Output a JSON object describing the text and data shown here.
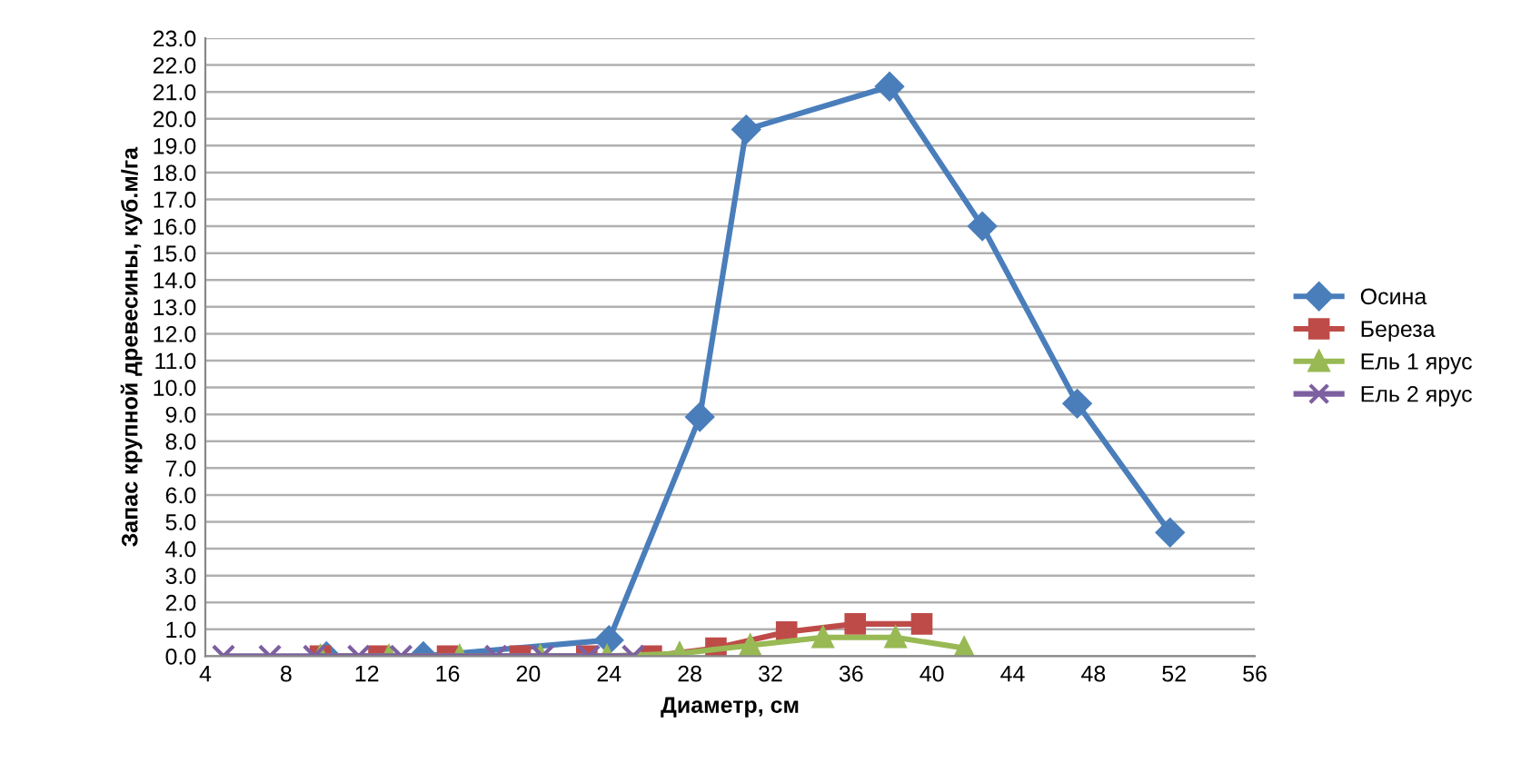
{
  "chart_data": {
    "type": "line",
    "xlabel": "Диаметр, см",
    "ylabel": "Запас крупной древесины, куб.м/га",
    "xlim": [
      4,
      56
    ],
    "xticks": [
      4,
      8,
      12,
      16,
      20,
      24,
      28,
      32,
      36,
      40,
      44,
      48,
      52,
      56
    ],
    "ylim": [
      0,
      23
    ],
    "yticks": [
      {
        "value": 0,
        "label": "0.0"
      },
      {
        "value": 1,
        "label": "1.0"
      },
      {
        "value": 2,
        "label": "2.0"
      },
      {
        "value": 3,
        "label": "3.0"
      },
      {
        "value": 4,
        "label": "4.0"
      },
      {
        "value": 5,
        "label": "5.0"
      },
      {
        "value": 6,
        "label": "6.0"
      },
      {
        "value": 7,
        "label": "7.0"
      },
      {
        "value": 8,
        "label": "8.0"
      },
      {
        "value": 9,
        "label": "9.0"
      },
      {
        "value": 10,
        "label": "10.0"
      },
      {
        "value": 11,
        "label": "11.0"
      },
      {
        "value": 12,
        "label": "12.0"
      },
      {
        "value": 13,
        "label": "13.0"
      },
      {
        "value": 14,
        "label": "14.0"
      },
      {
        "value": 15,
        "label": "15.0"
      },
      {
        "value": 16,
        "label": "16.0"
      },
      {
        "value": 17,
        "label": "17.0"
      },
      {
        "value": 18,
        "label": "18.0"
      },
      {
        "value": 19,
        "label": "19.0"
      },
      {
        "value": 20,
        "label": "20.0"
      },
      {
        "value": 21,
        "label": "21.0"
      },
      {
        "value": 22,
        "label": "22.0"
      },
      {
        "value": 23,
        "label": "23.0"
      }
    ],
    "grid": "y",
    "legend": "right",
    "series": [
      {
        "name": "Осина",
        "color": "#4a7ebb",
        "marker": "diamond",
        "x": [
          10,
          14.8,
          24,
          28.5,
          30.8,
          37.9,
          42.5,
          47.2,
          51.8
        ],
        "values": [
          0,
          0,
          0.6,
          8.9,
          19.6,
          21.2,
          16.0,
          9.4,
          4.6
        ]
      },
      {
        "name": "Береза",
        "color": "#be4b48",
        "marker": "square",
        "x": [
          9.7,
          12.6,
          16.0,
          19.6,
          22.9,
          26.1,
          29.3,
          32.8,
          36.2,
          39.5
        ],
        "values": [
          0,
          0,
          0,
          0,
          0,
          0,
          0.3,
          0.9,
          1.2,
          1.2
        ]
      },
      {
        "name": "Ель 1 ярус",
        "color": "#98b954",
        "marker": "triangle",
        "x": [
          9.7,
          13.1,
          16.6,
          20.6,
          23.9,
          27.5,
          31.0,
          34.6,
          38.2,
          41.6
        ],
        "values": [
          0,
          0,
          0,
          0,
          0,
          0.1,
          0.4,
          0.7,
          0.7,
          0.3
        ]
      },
      {
        "name": "Ель 2 ярус",
        "color": "#7d60a0",
        "marker": "cross",
        "x": [
          4.9,
          7.2,
          9.4,
          11.6,
          13.7,
          18.4,
          20.7,
          23.0,
          25.2
        ],
        "values": [
          0,
          0,
          0,
          0,
          0,
          0,
          0,
          0,
          0
        ]
      }
    ]
  }
}
